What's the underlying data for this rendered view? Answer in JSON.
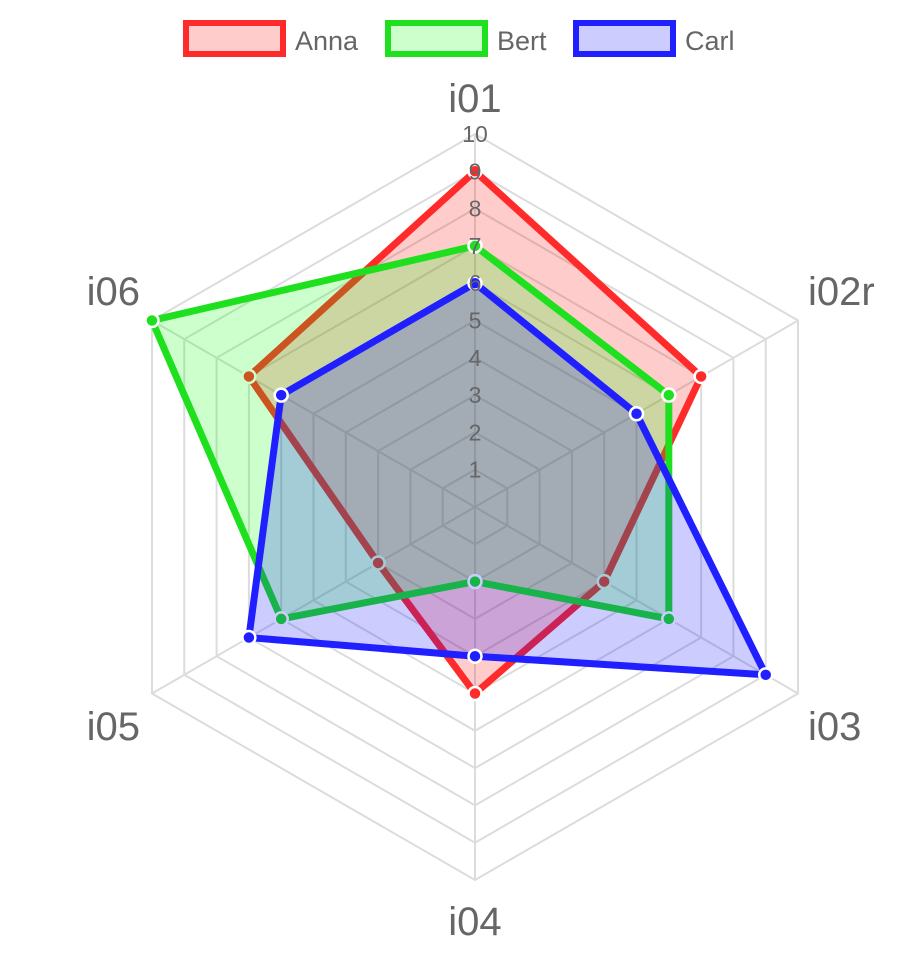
{
  "chart_data": {
    "type": "radar",
    "axes": [
      "i01",
      "i02r",
      "i03",
      "i04",
      "i05",
      "i06"
    ],
    "r_ticks": [
      "1",
      "2",
      "3",
      "4",
      "5",
      "6",
      "7",
      "8",
      "9",
      "10"
    ],
    "r_range": [
      0,
      10
    ],
    "grid": true,
    "legend_position": "top-center",
    "series": [
      {
        "name": "Anna",
        "values": [
          9,
          7,
          4,
          5,
          3,
          7
        ],
        "color": "#ff2a2a",
        "fill": "rgba(255, 0, 0, 0.2)"
      },
      {
        "name": "Bert",
        "values": [
          7,
          6,
          6,
          2,
          6,
          10
        ],
        "color": "#1ee01e",
        "fill": "rgba(0, 255, 0, 0.2)"
      },
      {
        "name": "Carl",
        "values": [
          6,
          5,
          9,
          4,
          7,
          6
        ],
        "color": "#1f1fff",
        "fill": "rgba(0, 0, 255, 0.2)"
      }
    ]
  }
}
